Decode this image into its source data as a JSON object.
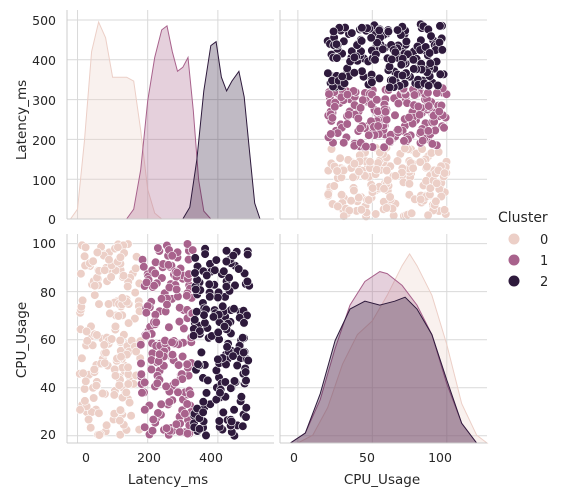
{
  "chart_data": {
    "type": "pairplot",
    "variables": [
      "Latency_ms",
      "CPU_Usage"
    ],
    "hue": "Cluster",
    "grid": true,
    "legend_placement": "right",
    "axes": {
      "Latency_ms": {
        "range": [
          -30,
          560
        ],
        "ticks": [
          0,
          200,
          400
        ]
      },
      "CPU_Usage": {
        "range": [
          -12,
          127
        ],
        "ticks": [
          0,
          50,
          100
        ]
      },
      "Latency_ms_row": {
        "range": [
          0,
          525
        ],
        "ticks": [
          0,
          100,
          200,
          300,
          400,
          500
        ]
      },
      "CPU_Usage_row": {
        "range": [
          17,
          104
        ],
        "ticks": [
          20,
          40,
          60,
          80,
          100
        ]
      }
    },
    "legend": {
      "title": "Cluster",
      "entries": [
        {
          "label": "0",
          "color": "#eccfc7"
        },
        {
          "label": "1",
          "color": "#a8628c"
        },
        {
          "label": "2",
          "color": "#2e1a3c"
        }
      ]
    },
    "series": [
      {
        "cluster": "0",
        "color": "#eccfc7",
        "latency_range": [
          5,
          180
        ],
        "cpu_range": [
          20,
          100
        ],
        "n": 190
      },
      {
        "cluster": "1",
        "color": "#a8628c",
        "latency_range": [
          180,
          330
        ],
        "cpu_range": [
          20,
          100
        ],
        "n": 185
      },
      {
        "cluster": "2",
        "color": "#2e1a3c",
        "latency_range": [
          330,
          490
        ],
        "cpu_range": [
          20,
          100
        ],
        "n": 175
      }
    ],
    "diag_latency_kde": [
      {
        "cluster": "0",
        "points": [
          [
            -20,
            0.0
          ],
          [
            0,
            0.05
          ],
          [
            20,
            0.4
          ],
          [
            40,
            0.85
          ],
          [
            60,
            1.0
          ],
          [
            80,
            0.92
          ],
          [
            100,
            0.72
          ],
          [
            120,
            0.72
          ],
          [
            140,
            0.72
          ],
          [
            160,
            0.7
          ],
          [
            180,
            0.45
          ],
          [
            200,
            0.15
          ],
          [
            220,
            0.03
          ],
          [
            240,
            0.0
          ]
        ]
      },
      {
        "cluster": "1",
        "points": [
          [
            140,
            0.0
          ],
          [
            160,
            0.05
          ],
          [
            180,
            0.25
          ],
          [
            200,
            0.6
          ],
          [
            220,
            0.82
          ],
          [
            240,
            0.96
          ],
          [
            255,
            0.98
          ],
          [
            270,
            0.85
          ],
          [
            285,
            0.75
          ],
          [
            300,
            0.77
          ],
          [
            315,
            0.82
          ],
          [
            330,
            0.55
          ],
          [
            345,
            0.2
          ],
          [
            360,
            0.04
          ],
          [
            380,
            0.0
          ]
        ]
      },
      {
        "cluster": "2",
        "points": [
          [
            300,
            0.0
          ],
          [
            320,
            0.06
          ],
          [
            340,
            0.3
          ],
          [
            360,
            0.65
          ],
          [
            380,
            0.88
          ],
          [
            395,
            0.9
          ],
          [
            410,
            0.72
          ],
          [
            425,
            0.65
          ],
          [
            440,
            0.7
          ],
          [
            460,
            0.75
          ],
          [
            475,
            0.62
          ],
          [
            490,
            0.35
          ],
          [
            505,
            0.08
          ],
          [
            520,
            0.0
          ]
        ]
      }
    ],
    "diag_cpu_kde": [
      {
        "cluster": "0",
        "points": [
          [
            0,
            0.0
          ],
          [
            10,
            0.04
          ],
          [
            20,
            0.18
          ],
          [
            30,
            0.4
          ],
          [
            40,
            0.55
          ],
          [
            50,
            0.62
          ],
          [
            60,
            0.75
          ],
          [
            70,
            0.9
          ],
          [
            75,
            0.96
          ],
          [
            80,
            0.9
          ],
          [
            90,
            0.75
          ],
          [
            100,
            0.5
          ],
          [
            110,
            0.2
          ],
          [
            120,
            0.04
          ],
          [
            127,
            0.0
          ]
        ]
      },
      {
        "cluster": "1",
        "points": [
          [
            -5,
            0.0
          ],
          [
            5,
            0.05
          ],
          [
            15,
            0.22
          ],
          [
            25,
            0.48
          ],
          [
            35,
            0.7
          ],
          [
            45,
            0.82
          ],
          [
            55,
            0.87
          ],
          [
            60,
            0.86
          ],
          [
            70,
            0.8
          ],
          [
            80,
            0.7
          ],
          [
            90,
            0.55
          ],
          [
            100,
            0.3
          ],
          [
            110,
            0.1
          ],
          [
            120,
            0.0
          ]
        ]
      },
      {
        "cluster": "2",
        "points": [
          [
            -5,
            0.0
          ],
          [
            5,
            0.05
          ],
          [
            15,
            0.25
          ],
          [
            25,
            0.52
          ],
          [
            35,
            0.68
          ],
          [
            45,
            0.72
          ],
          [
            55,
            0.7
          ],
          [
            65,
            0.72
          ],
          [
            72,
            0.74
          ],
          [
            80,
            0.68
          ],
          [
            90,
            0.55
          ],
          [
            100,
            0.32
          ],
          [
            110,
            0.1
          ],
          [
            120,
            0.0
          ]
        ]
      }
    ]
  }
}
